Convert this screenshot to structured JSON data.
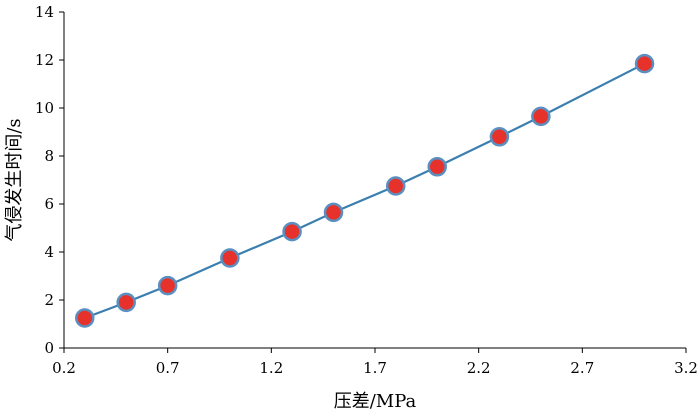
{
  "chart_data": {
    "type": "line",
    "xlabel": "压差/MPa",
    "ylabel": "气侵发生时间/s",
    "xlim": [
      0.2,
      3.2
    ],
    "ylim": [
      0,
      14
    ],
    "xticks": [
      0.2,
      0.7,
      1.2,
      1.7,
      2.2,
      2.7,
      3.2
    ],
    "xtick_labels": [
      "0.2",
      "0.7",
      "1.2",
      "1.7",
      "2.2",
      "2.7",
      "3.2"
    ],
    "yticks": [
      0,
      2,
      4,
      6,
      8,
      10,
      12,
      14
    ],
    "ytick_labels": [
      "0",
      "2",
      "4",
      "6",
      "8",
      "10",
      "12",
      "14"
    ],
    "grid": false,
    "legend": "none",
    "series": [
      {
        "x": [
          0.3,
          0.5,
          0.7,
          1.0,
          1.3,
          1.5,
          1.8,
          2.0,
          2.3,
          2.5,
          3.0
        ],
        "y": [
          1.25,
          1.9,
          2.6,
          3.75,
          4.85,
          5.65,
          6.75,
          7.55,
          8.8,
          9.65,
          11.85
        ],
        "line_color": "#3a7fb0",
        "marker_fill": "#e6322b",
        "marker_edge": "#5a8fc0"
      }
    ]
  }
}
